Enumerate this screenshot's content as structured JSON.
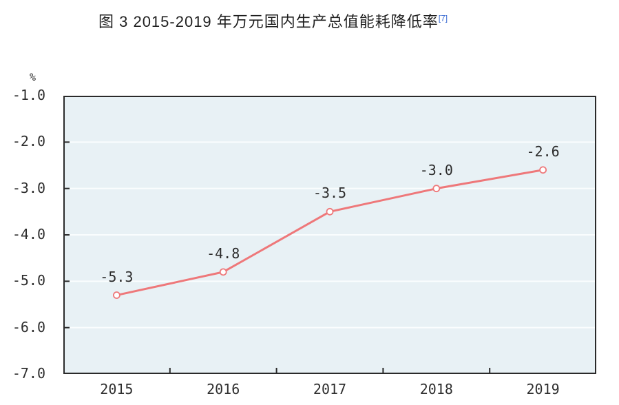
{
  "title": {
    "text": "图 3  2015-2019 年万元国内生产总值能耗降低率",
    "footnote_ref": "[7]"
  },
  "chart_data": {
    "type": "line",
    "title": "图 3  2015-2019 年万元国内生产总值能耗降低率",
    "footnote_ref": "[7]",
    "categories": [
      "2015",
      "2016",
      "2017",
      "2018",
      "2019"
    ],
    "values": [
      -5.3,
      -4.8,
      -3.5,
      -3.0,
      -2.6
    ],
    "data_labels": [
      "-5.3",
      "-4.8",
      "-3.5",
      "-3.0",
      "-2.6"
    ],
    "xlabel": "",
    "ylabel": "%",
    "y_axis": {
      "unit": "%",
      "max": -1.0,
      "min": -7.0,
      "tick_labels": [
        "-1.0",
        "-2.0",
        "-3.0",
        "-4.0",
        "-5.0",
        "-6.0",
        "-7.0"
      ]
    },
    "grid": true,
    "legend": "none",
    "colors": {
      "line": "#ee787a",
      "marker_fill": "#ffffff",
      "marker_stroke": "#ee787a",
      "plot_bg": "#e8f1f5",
      "grid_line": "#fafdfe",
      "axis": "#2a2a2a",
      "tick_text": "#2e2e2e",
      "data_label_text": "#2b2b2b",
      "title_text": "#1f1f1f",
      "footnote": "#3a6bd2"
    }
  }
}
